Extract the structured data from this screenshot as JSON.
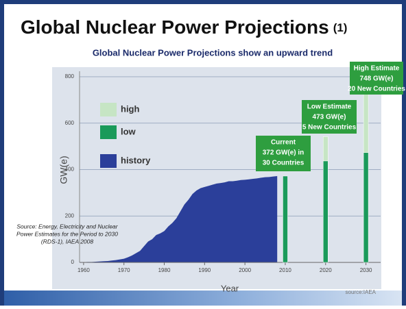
{
  "chart_data": {
    "type": "area",
    "title": "Global Nuclear Power Projections",
    "title_suffix": "(1)",
    "subtitle": "Global Nuclear Power Projections show an upward trend",
    "x_label": "Year",
    "y_label": "GW(e)",
    "xlim": [
      1959,
      2035
    ],
    "xticks": [
      1960,
      1970,
      1980,
      1990,
      2000,
      2010,
      2020,
      2030
    ],
    "ylim": [
      0,
      800
    ],
    "yticks": [
      0,
      200,
      400,
      600,
      800
    ],
    "grid": true,
    "series": [
      {
        "name": "history",
        "color": "#2b3f9a",
        "x": [
          1960,
          1961,
          1962,
          1963,
          1964,
          1965,
          1966,
          1967,
          1968,
          1969,
          1970,
          1971,
          1972,
          1973,
          1974,
          1975,
          1976,
          1977,
          1978,
          1979,
          1980,
          1981,
          1982,
          1983,
          1984,
          1985,
          1986,
          1987,
          1988,
          1989,
          1990,
          1991,
          1992,
          1993,
          1994,
          1995,
          1996,
          1997,
          1998,
          1999,
          2000,
          2001,
          2002,
          2003,
          2004,
          2005,
          2006,
          2007,
          2008
        ],
        "values": [
          1,
          2,
          2,
          3,
          4,
          5,
          6,
          8,
          10,
          13,
          16,
          22,
          30,
          40,
          50,
          70,
          90,
          100,
          118,
          125,
          135,
          155,
          170,
          190,
          220,
          250,
          270,
          295,
          310,
          320,
          325,
          330,
          335,
          340,
          342,
          345,
          350,
          350,
          352,
          355,
          356,
          358,
          360,
          362,
          365,
          367,
          368,
          370,
          372
        ]
      }
    ],
    "projections": {
      "x": [
        2010,
        2020,
        2030
      ],
      "low": {
        "name": "low",
        "color": "#1a9a5a",
        "values": [
          372,
          437,
          473
        ]
      },
      "high": {
        "name": "high",
        "color": "#c6e5c4",
        "values": [
          372,
          542,
          748
        ]
      }
    },
    "annotations": [
      {
        "lines": [
          "Current",
          "372 GW(e) in",
          "30 Countries"
        ]
      },
      {
        "lines": [
          "Low Estimate",
          "473 GW(e)",
          "5 New Countries"
        ]
      },
      {
        "lines": [
          "High Estimate",
          "748 GW(e)",
          "20 New Countries"
        ]
      }
    ],
    "source_note": [
      "Source: Energy, Electricity and Nuclear",
      "Power Estimates for the Period to 2030",
      "(RDS-1), IAEA 2008"
    ],
    "credit": "source:IAEA"
  }
}
